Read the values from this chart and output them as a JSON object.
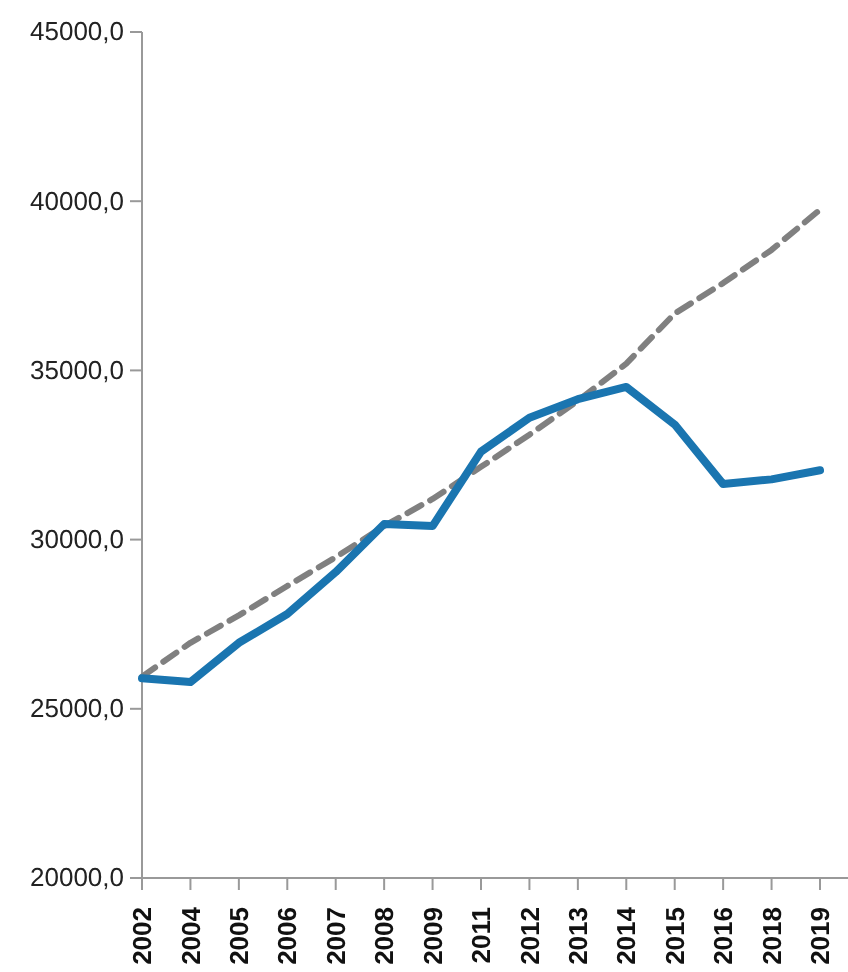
{
  "chart_data": {
    "type": "line",
    "categories": [
      "2002",
      "2004",
      "2005",
      "2006",
      "2007",
      "2008",
      "2009",
      "2011",
      "2012",
      "2013",
      "2014",
      "2015",
      "2016",
      "2018",
      "2019"
    ],
    "series": [
      {
        "color": "#1a75b0",
        "values": [
          25900,
          25790,
          26950,
          27800,
          29040,
          30460,
          30400,
          32600,
          33600,
          34150,
          34510,
          33400,
          31640,
          31780,
          32050
        ],
        "line_style": "solid"
      },
      {
        "color": "#808080",
        "values": [
          25950,
          26950,
          27760,
          28630,
          29480,
          30400,
          31200,
          32150,
          33100,
          34100,
          35200,
          36680,
          37580,
          38560,
          39750
        ],
        "line_style": "dashed"
      }
    ],
    "ylim": [
      20000,
      45000
    ],
    "yticks": [
      {
        "value": 20000,
        "label": "20000,0"
      },
      {
        "value": 25000,
        "label": "25000,0"
      },
      {
        "value": 30000,
        "label": "30000,0"
      },
      {
        "value": 35000,
        "label": "35000,0"
      },
      {
        "value": 40000,
        "label": "40000,0"
      },
      {
        "value": 45000,
        "label": "45000,0"
      }
    ],
    "grid": false,
    "marker": "none"
  }
}
